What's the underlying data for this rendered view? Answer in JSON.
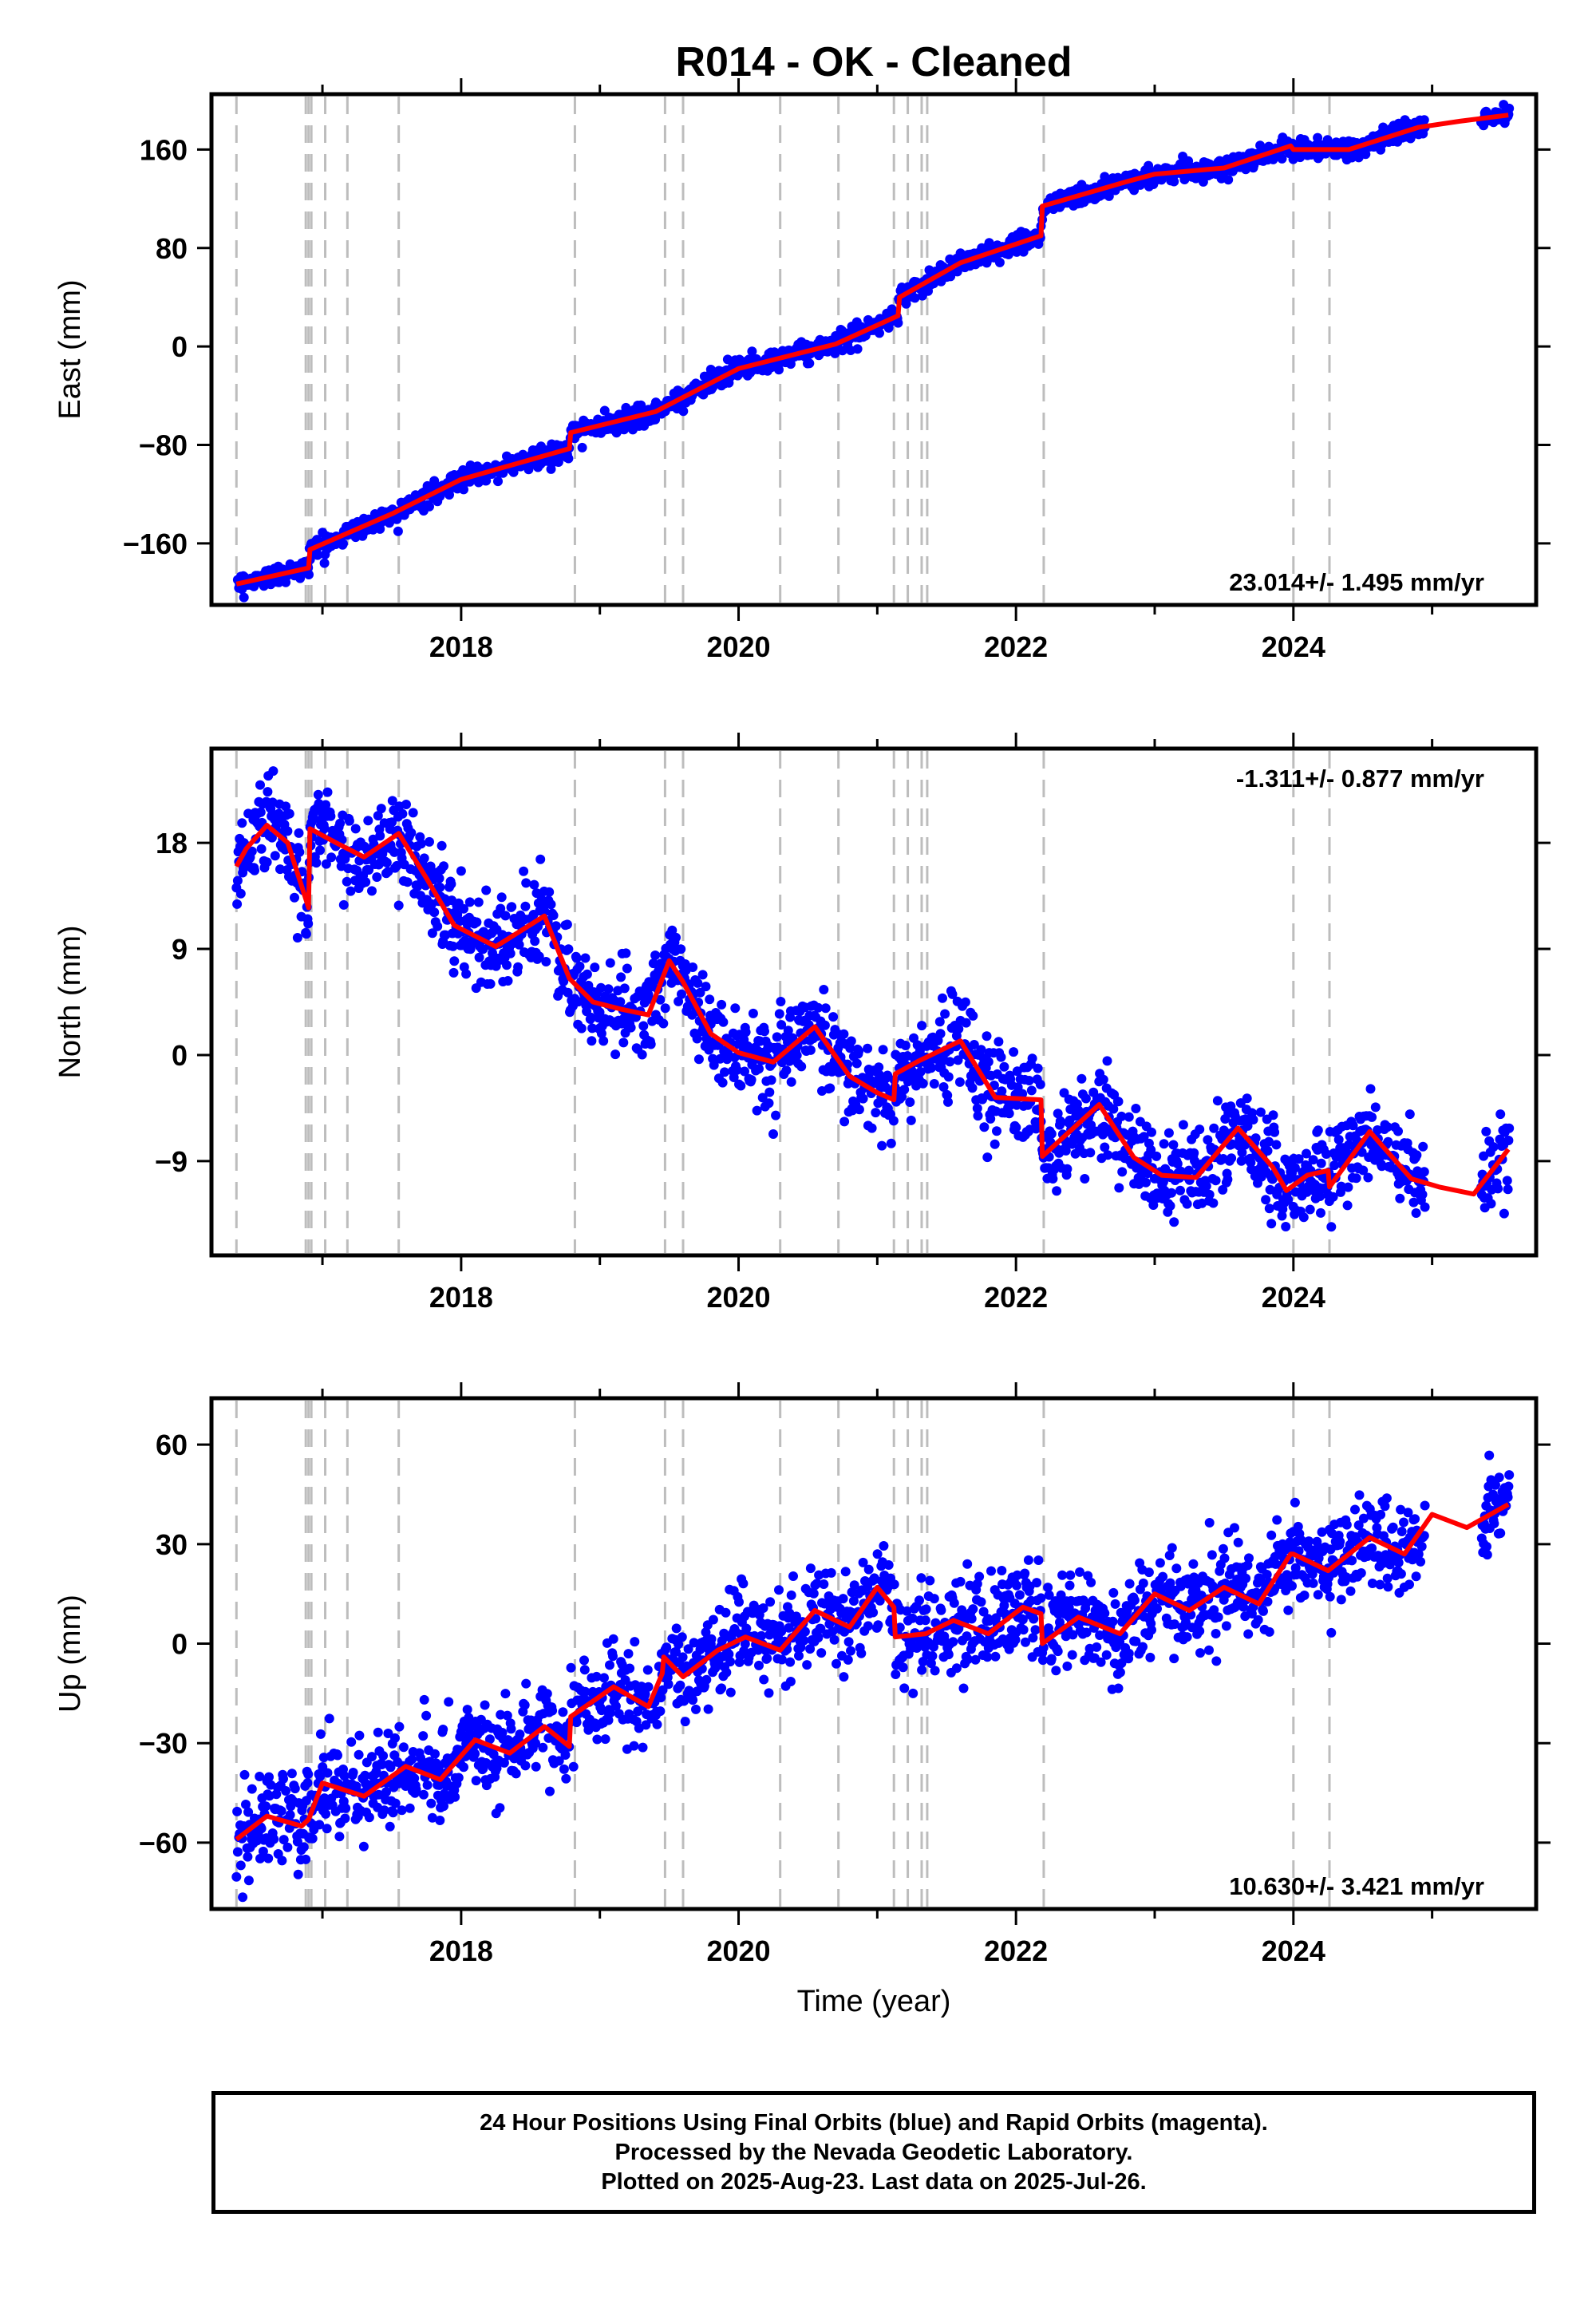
{
  "title": "R014  - OK - Cleaned",
  "colors": {
    "final_orbits": "#0000ff",
    "model": "#ff0000",
    "event_lines": "#bdbdbd",
    "axes": "#000000"
  },
  "chart_data": [
    {
      "type": "scatter",
      "component": "east",
      "ylabel": "East (mm)",
      "xlabel": "",
      "xlim": [
        2016.2,
        2025.75
      ],
      "ylim": [
        -210,
        205
      ],
      "yticks": [
        -160,
        -80,
        0,
        80,
        160
      ],
      "xticks": [
        2018,
        2020,
        2022,
        2024
      ],
      "rate_label": "23.014+/- 1.495 mm/yr",
      "rate_position": "bottom-right",
      "scatter_sd": 4,
      "model": {
        "x": [
          2016.38,
          2016.9,
          2016.91,
          2017.5,
          2018.0,
          2018.78,
          2018.79,
          2019.4,
          2020.0,
          2020.7,
          2021.15,
          2021.16,
          2021.6,
          2022.18,
          2022.19,
          2022.8,
          2023.0,
          2023.5,
          2023.98,
          2024.0,
          2024.4,
          2024.9,
          2025.2,
          2025.55
        ],
        "y": [
          -193,
          -180,
          -165,
          -136,
          -108,
          -83,
          -70,
          -53,
          -18,
          2,
          25,
          40,
          68,
          90,
          114,
          134,
          140,
          145,
          163,
          160,
          160,
          178,
          183,
          188
        ]
      }
    },
    {
      "type": "scatter",
      "component": "north",
      "ylabel": "North (mm)",
      "xlabel": "",
      "xlim": [
        2016.2,
        2025.75
      ],
      "ylim": [
        -17,
        26
      ],
      "yticks": [
        -9,
        0,
        9,
        18
      ],
      "xticks": [
        2018,
        2020,
        2022,
        2024
      ],
      "rate_label": "-1.311+/- 0.877 mm/yr",
      "rate_position": "top-right",
      "scatter_sd": 1.9,
      "model": {
        "x": [
          2016.38,
          2016.45,
          2016.6,
          2016.75,
          2016.9,
          2016.91,
          2017.1,
          2017.3,
          2017.55,
          2017.75,
          2017.95,
          2018.25,
          2018.6,
          2018.78,
          2018.95,
          2019.15,
          2019.35,
          2019.5,
          2019.6,
          2019.8,
          2020.0,
          2020.25,
          2020.55,
          2020.8,
          2021.0,
          2021.12,
          2021.13,
          2021.3,
          2021.6,
          2021.85,
          2022.18,
          2022.19,
          2022.6,
          2022.85,
          2023.05,
          2023.3,
          2023.6,
          2023.85,
          2023.95,
          2024.1,
          2024.25,
          2024.26,
          2024.55,
          2024.85,
          2025.05,
          2025.3,
          2025.55
        ],
        "y": [
          16,
          17.5,
          19.5,
          18,
          12.5,
          19.2,
          18,
          16.8,
          18.8,
          15,
          11,
          9.2,
          11.8,
          6.5,
          4.5,
          3.9,
          3.4,
          8,
          6.2,
          1.8,
          0.2,
          -0.6,
          2.4,
          -1.8,
          -3.2,
          -3.8,
          -1.6,
          -0.5,
          1.2,
          -3.6,
          -3.8,
          -8.6,
          -4.2,
          -8.7,
          -10.2,
          -10.4,
          -6.2,
          -9.5,
          -11.5,
          -10.2,
          -9.8,
          -11.2,
          -6.5,
          -10.5,
          -11.2,
          -11.8,
          -8
        ]
      }
    },
    {
      "type": "scatter",
      "component": "up",
      "ylabel": "Up (mm)",
      "xlabel": "Time (year)",
      "xlim": [
        2016.2,
        2025.75
      ],
      "ylim": [
        -80,
        74
      ],
      "yticks": [
        -60,
        -30,
        0,
        30,
        60
      ],
      "xticks": [
        2018,
        2020,
        2022,
        2024
      ],
      "rate_label": "10.630+/- 3.421 mm/yr",
      "rate_position": "bottom-right",
      "scatter_sd": 7,
      "model": {
        "x": [
          2016.38,
          2016.6,
          2016.85,
          2016.9,
          2017.0,
          2017.3,
          2017.6,
          2017.85,
          2018.1,
          2018.35,
          2018.6,
          2018.78,
          2018.79,
          2019.1,
          2019.35,
          2019.45,
          2019.46,
          2019.6,
          2019.85,
          2020.05,
          2020.3,
          2020.55,
          2020.8,
          2021.0,
          2021.12,
          2021.13,
          2021.35,
          2021.55,
          2021.8,
          2022.05,
          2022.18,
          2022.19,
          2022.45,
          2022.75,
          2023.0,
          2023.25,
          2023.5,
          2023.75,
          2023.98,
          2024.0,
          2024.25,
          2024.55,
          2024.8,
          2025.0,
          2025.25,
          2025.55
        ],
        "y": [
          -59,
          -52,
          -55,
          -53,
          -42,
          -46,
          -37,
          -41,
          -29,
          -33,
          -25,
          -31,
          -22,
          -13,
          -19,
          -9,
          -4,
          -10,
          -2,
          2,
          -2,
          10,
          5,
          17,
          11,
          2,
          3,
          7,
          3,
          11,
          9,
          0,
          8,
          3,
          15,
          10,
          17,
          12,
          27,
          27,
          22,
          32,
          27,
          39,
          35,
          42
        ]
      }
    }
  ],
  "event_lines_x": [
    2016.38,
    2016.88,
    2016.9,
    2016.92,
    2017.02,
    2017.18,
    2017.55,
    2018.82,
    2019.47,
    2019.6,
    2020.3,
    2020.72,
    2021.12,
    2021.22,
    2021.32,
    2021.36,
    2022.2,
    2024.0,
    2024.26
  ],
  "footer": {
    "line1": "24 Hour Positions Using Final Orbits (blue) and Rapid Orbits (magenta).",
    "line2": "Processed by the Nevada Geodetic Laboratory.",
    "line3": "Plotted on 2025-Aug-23. Last data on 2025-Jul-26."
  }
}
